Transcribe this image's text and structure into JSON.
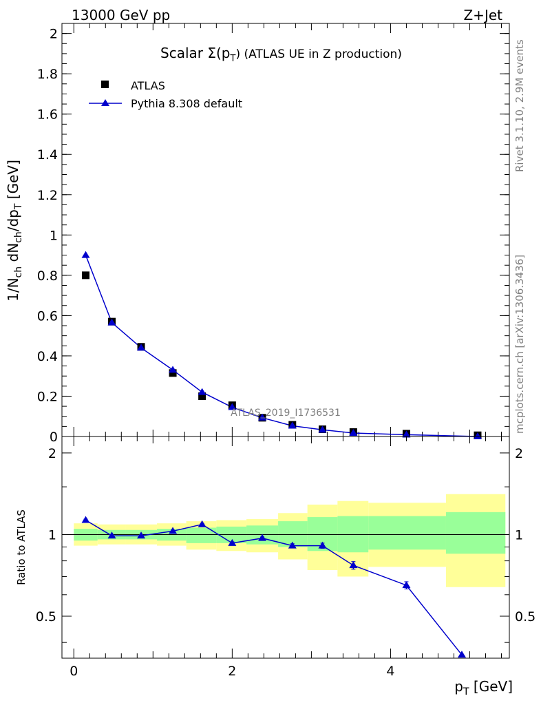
{
  "header": {
    "energy": "13000 GeV pp",
    "process": "Z+Jet"
  },
  "side_text": {
    "rivet": "Rivet 3.1.10,  2.9M events",
    "mcplots": "mcplots.cern.ch [arXiv:1306.3436]"
  },
  "chart_data": [
    {
      "type": "scatter",
      "title_main": "Scalar ",
      "title_sigma": "Σ(p",
      "title_sub": "T",
      "title_rest": ") (ATLAS UE in Z production)",
      "watermark": "ATLAS_2019_I1736531",
      "ylabel": "1/N_ch dN_ch/dp_T [GeV]",
      "xlim": [
        -0.15,
        5.5
      ],
      "ylim": [
        0,
        2.05
      ],
      "y_ticks": [
        "0",
        "0.2",
        "0.4",
        "0.6",
        "0.8",
        "1",
        "1.2",
        "1.4",
        "1.6",
        "1.8",
        "2"
      ],
      "legend": {
        "placement": "top-left",
        "entries": [
          "ATLAS",
          "Pythia 8.308 default"
        ]
      },
      "x": [
        0.15,
        0.48,
        0.85,
        1.25,
        1.62,
        2.0,
        2.38,
        2.76,
        3.14,
        3.53,
        4.2,
        5.1
      ],
      "series": [
        {
          "name": "ATLAS",
          "marker": "square",
          "color": "#000000",
          "values": [
            0.8,
            0.57,
            0.445,
            0.315,
            0.2,
            0.155,
            0.093,
            0.058,
            0.036,
            0.022,
            0.014,
            0.006
          ]
        },
        {
          "name": "Pythia 8.308 default",
          "marker": "triangle",
          "color": "#0000cc",
          "values": [
            0.9,
            0.565,
            0.44,
            0.33,
            0.22,
            0.145,
            0.093,
            0.053,
            0.033,
            0.017,
            0.009,
            0.0
          ]
        }
      ]
    },
    {
      "type": "line",
      "ylabel": "Ratio to ATLAS",
      "xlabel": "p_T [GeV]",
      "xlim": [
        -0.15,
        5.5
      ],
      "ylim": [
        0.35,
        2.3
      ],
      "y_ticks": [
        "0.5",
        "1",
        "2"
      ],
      "x_ticks": [
        "0",
        "2",
        "4"
      ],
      "reference_line": 1,
      "bands": {
        "edges": [
          0.0,
          0.3,
          0.65,
          1.05,
          1.42,
          1.8,
          2.18,
          2.58,
          2.95,
          3.33,
          3.72,
          4.7,
          5.45
        ],
        "yellow_low": [
          0.91,
          0.92,
          0.92,
          0.91,
          0.88,
          0.87,
          0.86,
          0.81,
          0.74,
          0.7,
          0.76,
          0.64
        ],
        "yellow_high": [
          1.1,
          1.09,
          1.09,
          1.1,
          1.12,
          1.13,
          1.14,
          1.2,
          1.29,
          1.33,
          1.31,
          1.41
        ],
        "green_low": [
          0.95,
          0.96,
          0.96,
          0.95,
          0.93,
          0.93,
          0.92,
          0.9,
          0.87,
          0.86,
          0.88,
          0.85
        ],
        "green_high": [
          1.05,
          1.04,
          1.04,
          1.05,
          1.06,
          1.07,
          1.08,
          1.12,
          1.16,
          1.17,
          1.17,
          1.21
        ],
        "green_color": "#99ff99",
        "yellow_color": "#ffff99"
      },
      "series": [
        {
          "name": "Pythia 8.308 default",
          "color": "#0000cc",
          "x": [
            0.15,
            0.48,
            0.85,
            1.25,
            1.62,
            2.0,
            2.38,
            2.76,
            3.14,
            3.53,
            4.2,
            4.9
          ],
          "values": [
            1.13,
            0.99,
            0.99,
            1.03,
            1.09,
            0.93,
            0.97,
            0.91,
            0.91,
            0.77,
            0.65,
            0.36
          ],
          "errors": [
            0.01,
            0.005,
            0.005,
            0.008,
            0.01,
            0.01,
            0.01,
            0.015,
            0.02,
            0.025,
            0.02,
            0.0
          ]
        }
      ]
    }
  ]
}
